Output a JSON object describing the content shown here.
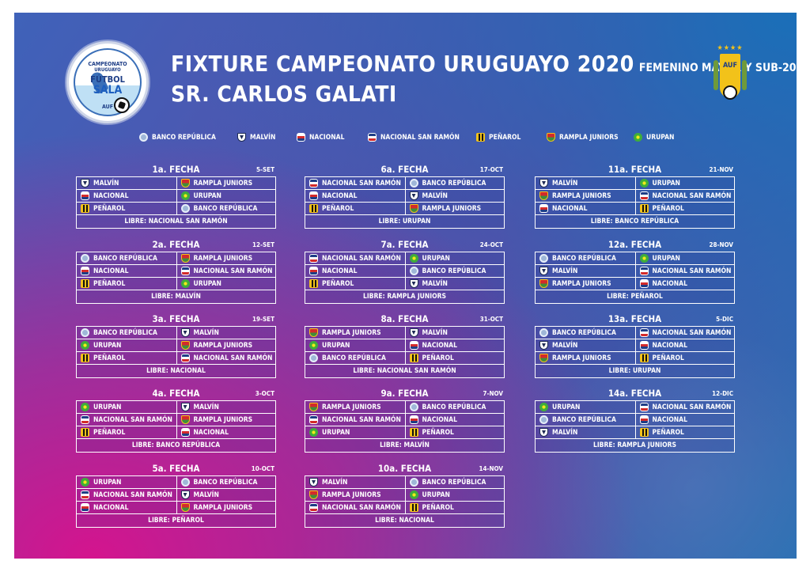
{
  "header": {
    "title": "FIXTURE CAMPEONATO URUGUAYO 2020",
    "subtitle": "FEMENINO MAYOR Y SUB-20",
    "dedication": "SR. CARLOS GALATI",
    "logo": {
      "line1": "CAMPEONATO",
      "line2": "URUGUAYO",
      "line3": "FÚTBOL",
      "line4": "SALA",
      "line5": "AUF"
    },
    "crest": {
      "text": "AUF",
      "stars": "★★★★"
    }
  },
  "legend": [
    {
      "label": "BANCO REPÚBLICA",
      "icon": "banco-icon"
    },
    {
      "label": "MALVÍN",
      "icon": "malvin-icon"
    },
    {
      "label": "NACIONAL",
      "icon": "nacional-icon"
    },
    {
      "label": "NACIONAL SAN RAMÓN",
      "icon": "nsr-icon"
    },
    {
      "label": "PEÑAROL",
      "icon": "penarol-icon"
    },
    {
      "label": "RAMPLA JUNIORS",
      "icon": "rampla-icon"
    },
    {
      "label": "URUPAN",
      "icon": "urupan-icon"
    }
  ],
  "fechas": [
    {
      "name": "1a. FECHA",
      "date": "5-SET",
      "matches": [
        [
          "MALVÍN",
          "RAMPLA JUNIORS"
        ],
        [
          "NACIONAL",
          "URUPAN"
        ],
        [
          "PEÑAROL",
          "BANCO REPÚBLICA"
        ]
      ],
      "libre": "LIBRE: NACIONAL SAN RAMÓN"
    },
    {
      "name": "2a. FECHA",
      "date": "12-SET",
      "matches": [
        [
          "BANCO REPÚBLICA",
          "RAMPLA JUNIORS"
        ],
        [
          "NACIONAL",
          "NACIONAL SAN RAMÓN"
        ],
        [
          "PEÑAROL",
          "URUPAN"
        ]
      ],
      "libre": "LIBRE: MALVÍN"
    },
    {
      "name": "3a. FECHA",
      "date": "19-SET",
      "matches": [
        [
          "BANCO REPÚBLICA",
          "MALVÍN"
        ],
        [
          "URUPAN",
          "RAMPLA JUNIORS"
        ],
        [
          "PEÑAROL",
          "NACIONAL SAN RAMÓN"
        ]
      ],
      "libre": "LIBRE: NACIONAL"
    },
    {
      "name": "4a. FECHA",
      "date": "3-OCT",
      "matches": [
        [
          "URUPAN",
          "MALVÍN"
        ],
        [
          "NACIONAL SAN RAMÓN",
          "RAMPLA JUNIORS"
        ],
        [
          "PEÑAROL",
          "NACIONAL"
        ]
      ],
      "libre": "LIBRE: BANCO REPÚBLICA"
    },
    {
      "name": "5a. FECHA",
      "date": "10-OCT",
      "matches": [
        [
          "URUPAN",
          "BANCO REPÚBLICA"
        ],
        [
          "NACIONAL SAN RAMÓN",
          "MALVÍN"
        ],
        [
          "NACIONAL",
          "RAMPLA JUNIORS"
        ]
      ],
      "libre": "LIBRE: PEÑAROL"
    },
    {
      "name": "6a. FECHA",
      "date": "17-OCT",
      "matches": [
        [
          "NACIONAL SAN RAMÓN",
          "BANCO REPÚBLICA"
        ],
        [
          "NACIONAL",
          "MALVÍN"
        ],
        [
          "PEÑAROL",
          "RAMPLA JUNIORS"
        ]
      ],
      "libre": "LIBRE: URUPAN"
    },
    {
      "name": "7a. FECHA",
      "date": "24-OCT",
      "matches": [
        [
          "NACIONAL SAN RAMÓN",
          "URUPAN"
        ],
        [
          "NACIONAL",
          "BANCO REPÚBLICA"
        ],
        [
          "PEÑAROL",
          "MALVÍN"
        ]
      ],
      "libre": "LIBRE: RAMPLA JUNIORS"
    },
    {
      "name": "8a. FECHA",
      "date": "31-OCT",
      "matches": [
        [
          "RAMPLA JUNIORS",
          "MALVÍN"
        ],
        [
          "URUPAN",
          "NACIONAL"
        ],
        [
          "BANCO REPÚBLICA",
          "PEÑAROL"
        ]
      ],
      "libre": "LIBRE: NACIONAL SAN RAMÓN"
    },
    {
      "name": "9a. FECHA",
      "date": "7-NOV",
      "matches": [
        [
          "RAMPLA JUNIORS",
          "BANCO REPÚBLICA"
        ],
        [
          "NACIONAL SAN RAMÓN",
          "NACIONAL"
        ],
        [
          "URUPAN",
          "PEÑAROL"
        ]
      ],
      "libre": "LIBRE: MALVÍN"
    },
    {
      "name": "10a. FECHA",
      "date": "14-NOV",
      "matches": [
        [
          "MALVÍN",
          "BANCO REPÚBLICA"
        ],
        [
          "RAMPLA JUNIORS",
          "URUPAN"
        ],
        [
          "NACIONAL SAN RAMÓN",
          "PEÑAROL"
        ]
      ],
      "libre": "LIBRE: NACIONAL"
    },
    {
      "name": "11a. FECHA",
      "date": "21-NOV",
      "matches": [
        [
          "MALVÍN",
          "URUPAN"
        ],
        [
          "RAMPLA JUNIORS",
          "NACIONAL SAN RAMÓN"
        ],
        [
          "NACIONAL",
          "PEÑAROL"
        ]
      ],
      "libre": "LIBRE: BANCO REPÚBLICA"
    },
    {
      "name": "12a. FECHA",
      "date": "28-NOV",
      "matches": [
        [
          "BANCO REPÚBLICA",
          "URUPAN"
        ],
        [
          "MALVÍN",
          "NACIONAL SAN RAMÓN"
        ],
        [
          "RAMPLA JUNIORS",
          "NACIONAL"
        ]
      ],
      "libre": "LIBRE: PEÑAROL"
    },
    {
      "name": "13a. FECHA",
      "date": "5-DIC",
      "matches": [
        [
          "BANCO REPÚBLICA",
          "NACIONAL SAN RAMÓN"
        ],
        [
          "MALVÍN",
          "NACIONAL"
        ],
        [
          "RAMPLA JUNIORS",
          "PEÑAROL"
        ]
      ],
      "libre": "LIBRE: URUPAN"
    },
    {
      "name": "14a. FECHA",
      "date": "12-DIC",
      "matches": [
        [
          "URUPAN",
          "NACIONAL SAN RAMÓN"
        ],
        [
          "BANCO REPÚBLICA",
          "NACIONAL"
        ],
        [
          "MALVÍN",
          "PEÑAROL"
        ]
      ],
      "libre": "LIBRE: RAMPLA JUNIORS"
    }
  ],
  "team_icons": {
    "BANCO REPÚBLICA": "banco-icon",
    "MALVÍN": "malvin-icon",
    "NACIONAL": "nacional-icon",
    "NACIONAL SAN RAMÓN": "nsr-icon",
    "PEÑAROL": "penarol-icon",
    "RAMPLA JUNIORS": "rampla-icon",
    "URUPAN": "urupan-icon"
  },
  "colors": {
    "accent_magenta": "#d4148e",
    "accent_blue": "#1a6fb8",
    "text": "#ffffff",
    "crest_gold": "#f2c21a"
  }
}
